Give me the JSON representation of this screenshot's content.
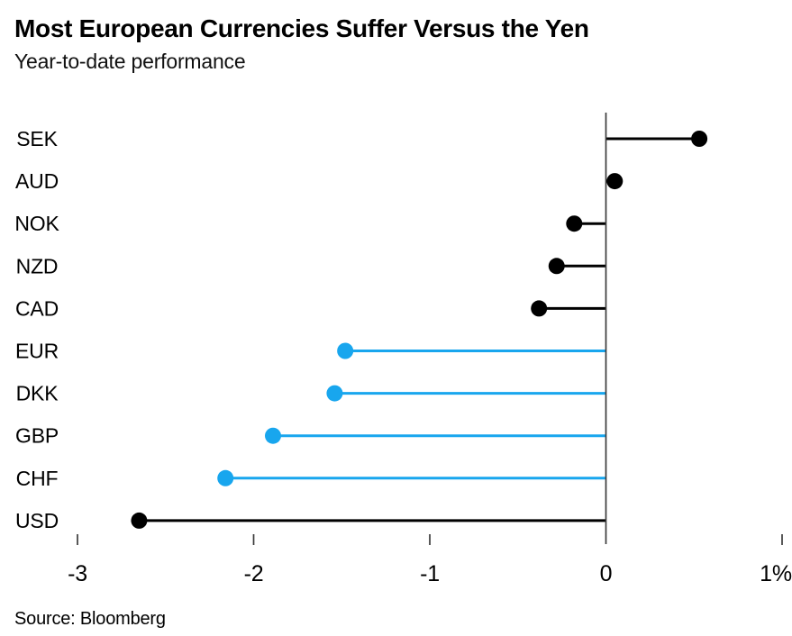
{
  "header": {
    "title": "Most European Currencies Suffer Versus the Yen",
    "subtitle": "Year-to-date performance"
  },
  "footer": {
    "source": "Source: Bloomberg"
  },
  "colors": {
    "default_series": "#000000",
    "european_highlight": "#18A6EE",
    "axis": "#3c3c3c",
    "background": "#ffffff"
  },
  "chart_data": {
    "type": "bar",
    "subtype": "horizontal-lollipop",
    "title": "Most European Currencies Suffer Versus the Yen",
    "subtitle": "Year-to-date performance",
    "unit": "%",
    "categories": [
      "SEK",
      "AUD",
      "NOK",
      "NZD",
      "CAD",
      "EUR",
      "DKK",
      "GBP",
      "CHF",
      "USD"
    ],
    "values": [
      0.53,
      0.05,
      -0.18,
      -0.28,
      -0.38,
      -1.48,
      -1.54,
      -1.89,
      -2.16,
      -2.65
    ],
    "series_colors": [
      "#000000",
      "#000000",
      "#000000",
      "#000000",
      "#000000",
      "#18A6EE",
      "#18A6EE",
      "#18A6EE",
      "#18A6EE",
      "#000000"
    ],
    "baseline": 0,
    "xlabel": "",
    "ylabel": "",
    "xlim": [
      -3.4,
      1.06
    ],
    "xticks": [
      -3,
      -2,
      -1,
      0,
      1
    ],
    "xtick_labels": [
      "-3",
      "-2",
      "-1",
      "0",
      "1%"
    ],
    "grid": false,
    "legend": false,
    "source": "Source: Bloomberg"
  }
}
